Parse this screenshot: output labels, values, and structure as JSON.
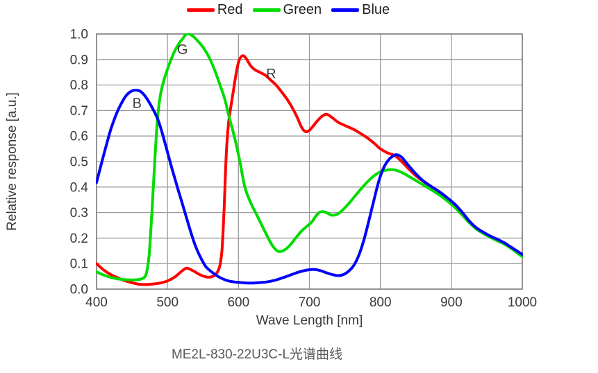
{
  "caption": "ME2L-830-22U3C-L光谱曲线",
  "legend": {
    "items": [
      {
        "label": "Red",
        "color": "#fe0000"
      },
      {
        "label": "Green",
        "color": "#00dc00"
      },
      {
        "label": "Blue",
        "color": "#0000fe"
      }
    ]
  },
  "chart_data": {
    "type": "line",
    "title": "",
    "xlabel": "Wave Length [nm]",
    "ylabel": "Relative response [a.u.]",
    "xlim": [
      400,
      1000
    ],
    "ylim": [
      0.0,
      1.0
    ],
    "x_ticks": [
      "400",
      "500",
      "600",
      "700",
      "800",
      "900",
      "1000"
    ],
    "y_ticks": [
      "1.0",
      "0.9",
      "0.8",
      "0.7",
      "0.6",
      "0.5",
      "0.4",
      "0.3",
      "0.2",
      "0.1",
      "0.0"
    ],
    "grid": true,
    "legend_position": "top-center",
    "colors": {
      "grid": "#9d9d9d",
      "border": "#7f7f7f",
      "tick_text": "#383838",
      "annotation_text": "#3c3c3c"
    },
    "annotations": [
      {
        "text": "B",
        "x": 457,
        "y": 0.73
      },
      {
        "text": "G",
        "x": 521,
        "y": 0.94
      },
      {
        "text": "R",
        "x": 646,
        "y": 0.845
      }
    ],
    "series": [
      {
        "name": "Red",
        "color": "#fe0000",
        "points": [
          [
            400,
            0.1
          ],
          [
            410,
            0.075
          ],
          [
            420,
            0.057
          ],
          [
            430,
            0.044
          ],
          [
            440,
            0.033
          ],
          [
            450,
            0.025
          ],
          [
            460,
            0.019
          ],
          [
            470,
            0.018
          ],
          [
            480,
            0.02
          ],
          [
            490,
            0.024
          ],
          [
            500,
            0.032
          ],
          [
            510,
            0.047
          ],
          [
            520,
            0.07
          ],
          [
            527,
            0.082
          ],
          [
            536,
            0.072
          ],
          [
            546,
            0.056
          ],
          [
            556,
            0.047
          ],
          [
            564,
            0.05
          ],
          [
            570,
            0.065
          ],
          [
            574,
            0.095
          ],
          [
            577,
            0.16
          ],
          [
            580,
            0.33
          ],
          [
            583,
            0.54
          ],
          [
            586,
            0.65
          ],
          [
            589,
            0.71
          ],
          [
            593,
            0.78
          ],
          [
            597,
            0.85
          ],
          [
            601,
            0.897
          ],
          [
            606,
            0.915
          ],
          [
            611,
            0.903
          ],
          [
            617,
            0.876
          ],
          [
            623,
            0.86
          ],
          [
            630,
            0.85
          ],
          [
            638,
            0.838
          ],
          [
            646,
            0.818
          ],
          [
            653,
            0.8
          ],
          [
            661,
            0.772
          ],
          [
            669,
            0.742
          ],
          [
            676,
            0.71
          ],
          [
            683,
            0.672
          ],
          [
            689,
            0.634
          ],
          [
            694,
            0.618
          ],
          [
            699,
            0.62
          ],
          [
            705,
            0.638
          ],
          [
            712,
            0.662
          ],
          [
            719,
            0.68
          ],
          [
            725,
            0.685
          ],
          [
            733,
            0.67
          ],
          [
            741,
            0.653
          ],
          [
            751,
            0.64
          ],
          [
            761,
            0.628
          ],
          [
            771,
            0.612
          ],
          [
            781,
            0.594
          ],
          [
            791,
            0.572
          ],
          [
            800,
            0.55
          ],
          [
            810,
            0.534
          ],
          [
            820,
            0.524
          ],
          [
            829,
            0.503
          ],
          [
            839,
            0.474
          ],
          [
            849,
            0.447
          ],
          [
            860,
            0.423
          ],
          [
            872,
            0.401
          ],
          [
            884,
            0.378
          ],
          [
            896,
            0.352
          ],
          [
            905,
            0.331
          ],
          [
            915,
            0.301
          ],
          [
            925,
            0.266
          ],
          [
            935,
            0.24
          ],
          [
            945,
            0.222
          ],
          [
            955,
            0.207
          ],
          [
            965,
            0.193
          ],
          [
            975,
            0.179
          ],
          [
            985,
            0.162
          ],
          [
            1000,
            0.135
          ]
        ]
      },
      {
        "name": "Green",
        "color": "#00dc00",
        "points": [
          [
            400,
            0.068
          ],
          [
            410,
            0.055
          ],
          [
            420,
            0.046
          ],
          [
            430,
            0.04
          ],
          [
            440,
            0.037
          ],
          [
            450,
            0.036
          ],
          [
            458,
            0.037
          ],
          [
            465,
            0.042
          ],
          [
            470,
            0.06
          ],
          [
            474,
            0.13
          ],
          [
            478,
            0.3
          ],
          [
            482,
            0.5
          ],
          [
            486,
            0.67
          ],
          [
            490,
            0.76
          ],
          [
            495,
            0.82
          ],
          [
            500,
            0.862
          ],
          [
            505,
            0.9
          ],
          [
            510,
            0.932
          ],
          [
            516,
            0.962
          ],
          [
            521,
            0.98
          ],
          [
            527,
            1.0
          ],
          [
            534,
            0.995
          ],
          [
            542,
            0.975
          ],
          [
            550,
            0.948
          ],
          [
            558,
            0.912
          ],
          [
            566,
            0.862
          ],
          [
            574,
            0.8
          ],
          [
            581,
            0.742
          ],
          [
            587,
            0.672
          ],
          [
            594,
            0.6
          ],
          [
            602,
            0.5
          ],
          [
            609,
            0.4
          ],
          [
            617,
            0.34
          ],
          [
            625,
            0.295
          ],
          [
            633,
            0.25
          ],
          [
            641,
            0.205
          ],
          [
            648,
            0.17
          ],
          [
            656,
            0.148
          ],
          [
            664,
            0.152
          ],
          [
            672,
            0.17
          ],
          [
            680,
            0.198
          ],
          [
            688,
            0.225
          ],
          [
            696,
            0.245
          ],
          [
            703,
            0.262
          ],
          [
            710,
            0.29
          ],
          [
            716,
            0.303
          ],
          [
            723,
            0.301
          ],
          [
            731,
            0.29
          ],
          [
            739,
            0.293
          ],
          [
            747,
            0.31
          ],
          [
            756,
            0.337
          ],
          [
            765,
            0.367
          ],
          [
            774,
            0.397
          ],
          [
            783,
            0.424
          ],
          [
            792,
            0.446
          ],
          [
            801,
            0.461
          ],
          [
            810,
            0.467
          ],
          [
            818,
            0.468
          ],
          [
            827,
            0.461
          ],
          [
            837,
            0.447
          ],
          [
            848,
            0.429
          ],
          [
            860,
            0.409
          ],
          [
            872,
            0.389
          ],
          [
            884,
            0.367
          ],
          [
            896,
            0.342
          ],
          [
            905,
            0.32
          ],
          [
            915,
            0.291
          ],
          [
            925,
            0.261
          ],
          [
            935,
            0.236
          ],
          [
            945,
            0.218
          ],
          [
            955,
            0.203
          ],
          [
            965,
            0.189
          ],
          [
            975,
            0.176
          ],
          [
            985,
            0.158
          ],
          [
            1000,
            0.127
          ]
        ]
      },
      {
        "name": "Blue",
        "color": "#0000fe",
        "points": [
          [
            400,
            0.418
          ],
          [
            405,
            0.472
          ],
          [
            410,
            0.525
          ],
          [
            415,
            0.576
          ],
          [
            420,
            0.625
          ],
          [
            425,
            0.665
          ],
          [
            430,
            0.7
          ],
          [
            435,
            0.728
          ],
          [
            440,
            0.752
          ],
          [
            445,
            0.768
          ],
          [
            450,
            0.777
          ],
          [
            456,
            0.78
          ],
          [
            462,
            0.775
          ],
          [
            468,
            0.758
          ],
          [
            474,
            0.733
          ],
          [
            480,
            0.703
          ],
          [
            486,
            0.668
          ],
          [
            492,
            0.617
          ],
          [
            498,
            0.557
          ],
          [
            504,
            0.495
          ],
          [
            510,
            0.437
          ],
          [
            516,
            0.38
          ],
          [
            522,
            0.325
          ],
          [
            528,
            0.268
          ],
          [
            534,
            0.213
          ],
          [
            540,
            0.165
          ],
          [
            547,
            0.122
          ],
          [
            554,
            0.088
          ],
          [
            562,
            0.068
          ],
          [
            570,
            0.052
          ],
          [
            578,
            0.04
          ],
          [
            586,
            0.032
          ],
          [
            594,
            0.028
          ],
          [
            602,
            0.026
          ],
          [
            612,
            0.024
          ],
          [
            622,
            0.024
          ],
          [
            632,
            0.026
          ],
          [
            642,
            0.029
          ],
          [
            652,
            0.035
          ],
          [
            662,
            0.044
          ],
          [
            672,
            0.054
          ],
          [
            682,
            0.064
          ],
          [
            692,
            0.072
          ],
          [
            700,
            0.076
          ],
          [
            708,
            0.077
          ],
          [
            716,
            0.072
          ],
          [
            724,
            0.064
          ],
          [
            732,
            0.057
          ],
          [
            740,
            0.053
          ],
          [
            748,
            0.057
          ],
          [
            756,
            0.072
          ],
          [
            763,
            0.095
          ],
          [
            770,
            0.135
          ],
          [
            777,
            0.195
          ],
          [
            784,
            0.27
          ],
          [
            791,
            0.35
          ],
          [
            798,
            0.425
          ],
          [
            805,
            0.478
          ],
          [
            812,
            0.508
          ],
          [
            818,
            0.522
          ],
          [
            823,
            0.527
          ],
          [
            830,
            0.517
          ],
          [
            838,
            0.49
          ],
          [
            848,
            0.458
          ],
          [
            860,
            0.425
          ],
          [
            872,
            0.402
          ],
          [
            884,
            0.38
          ],
          [
            896,
            0.354
          ],
          [
            905,
            0.333
          ],
          [
            915,
            0.302
          ],
          [
            925,
            0.268
          ],
          [
            935,
            0.241
          ],
          [
            945,
            0.223
          ],
          [
            955,
            0.208
          ],
          [
            965,
            0.195
          ],
          [
            975,
            0.181
          ],
          [
            985,
            0.163
          ],
          [
            1000,
            0.136
          ]
        ]
      }
    ]
  }
}
